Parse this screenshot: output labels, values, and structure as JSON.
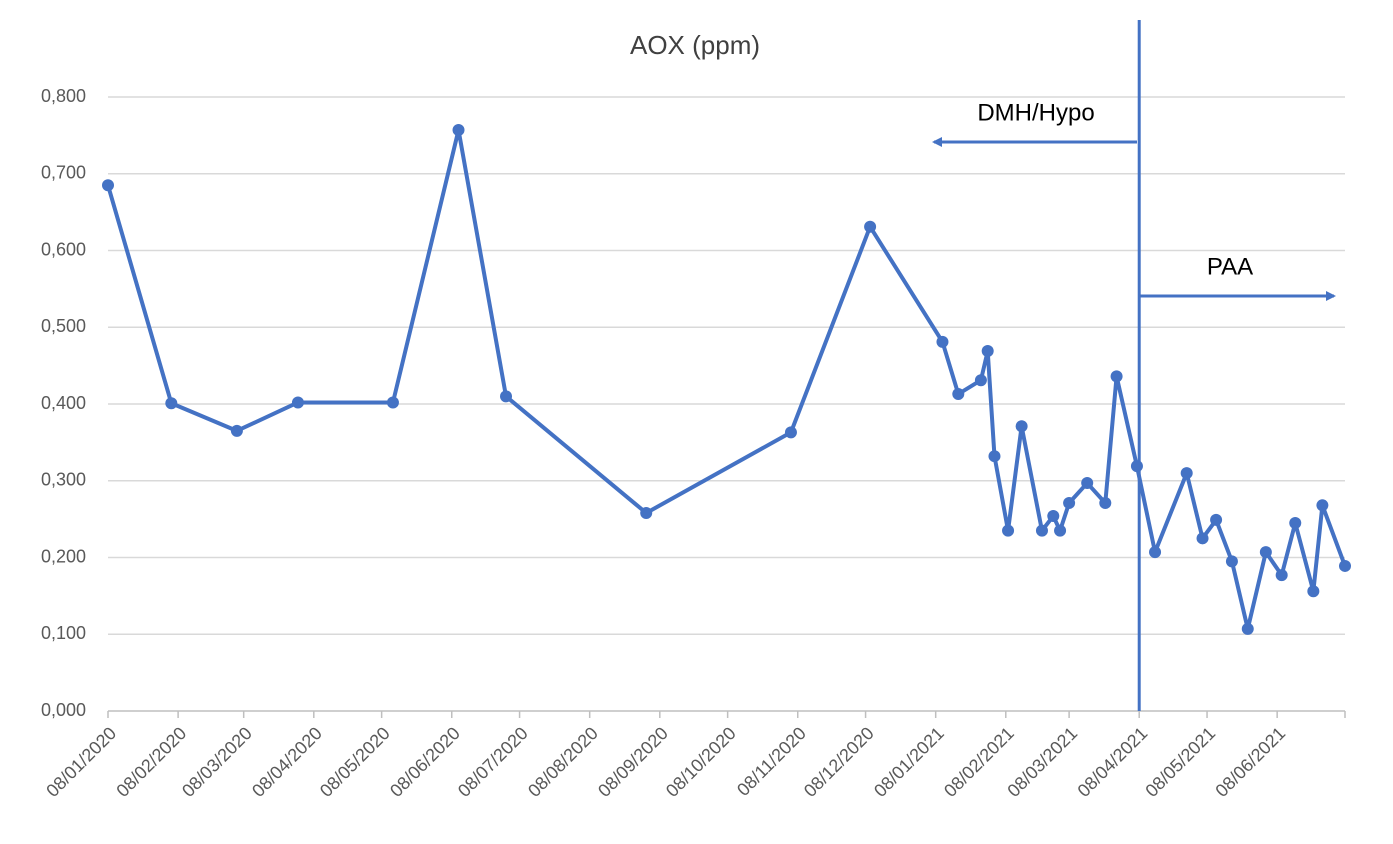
{
  "chart_data": {
    "type": "line",
    "title": "AOX (ppm)",
    "x": [
      "2020-01-08",
      "2020-02-05",
      "2020-03-05",
      "2020-04-01",
      "2020-05-13",
      "2020-06-11",
      "2020-07-02",
      "2020-09-02",
      "2020-11-05",
      "2020-12-10",
      "2021-01-11",
      "2021-01-18",
      "2021-01-28",
      "2021-01-31",
      "2021-02-03",
      "2021-02-09",
      "2021-02-15",
      "2021-02-24",
      "2021-03-01",
      "2021-03-04",
      "2021-03-08",
      "2021-03-16",
      "2021-03-24",
      "2021-03-29",
      "2021-04-07",
      "2021-04-15",
      "2021-04-29",
      "2021-05-06",
      "2021-05-12",
      "2021-05-19",
      "2021-05-26",
      "2021-06-03",
      "2021-06-10",
      "2021-06-16",
      "2021-06-24",
      "2021-06-28",
      "2021-07-08"
    ],
    "series": [
      {
        "name": "AOX (ppm)",
        "color": "#4472c4",
        "values": [
          0.685,
          0.401,
          0.365,
          0.402,
          0.402,
          0.757,
          0.41,
          0.258,
          0.363,
          0.631,
          0.481,
          0.413,
          0.431,
          0.469,
          0.332,
          0.235,
          0.371,
          0.235,
          0.254,
          0.235,
          0.271,
          0.297,
          0.271,
          0.436,
          0.319,
          0.207,
          0.31,
          0.225,
          0.249,
          0.195,
          0.107,
          0.207,
          0.177,
          0.245,
          0.156,
          0.268,
          0.189
        ]
      }
    ],
    "xlim": [
      "2020-01-08",
      "2021-07-08"
    ],
    "xticks": [
      {
        "value": "2020-01-08",
        "label": "08/01/2020"
      },
      {
        "value": "2020-02-08",
        "label": "08/02/2020"
      },
      {
        "value": "2020-03-08",
        "label": "08/03/2020"
      },
      {
        "value": "2020-04-08",
        "label": "08/04/2020"
      },
      {
        "value": "2020-05-08",
        "label": "08/05/2020"
      },
      {
        "value": "2020-06-08",
        "label": "08/06/2020"
      },
      {
        "value": "2020-07-08",
        "label": "08/07/2020"
      },
      {
        "value": "2020-08-08",
        "label": "08/08/2020"
      },
      {
        "value": "2020-09-08",
        "label": "08/09/2020"
      },
      {
        "value": "2020-10-08",
        "label": "08/10/2020"
      },
      {
        "value": "2020-11-08",
        "label": "08/11/2020"
      },
      {
        "value": "2020-12-08",
        "label": "08/12/2020"
      },
      {
        "value": "2021-01-08",
        "label": "08/01/2021"
      },
      {
        "value": "2021-02-08",
        "label": "08/02/2021"
      },
      {
        "value": "2021-03-08",
        "label": "08/03/2021"
      },
      {
        "value": "2021-04-08",
        "label": "08/04/2021"
      },
      {
        "value": "2021-05-08",
        "label": "08/05/2021"
      },
      {
        "value": "2021-06-08",
        "label": "08/06/2021"
      }
    ],
    "ylim": [
      0,
      0.8
    ],
    "yticks": [
      {
        "value": 0,
        "label": "0,000"
      },
      {
        "value": 0.1,
        "label": "0,100"
      },
      {
        "value": 0.2,
        "label": "0,200"
      },
      {
        "value": 0.3,
        "label": "0,300"
      },
      {
        "value": 0.4,
        "label": "0,400"
      },
      {
        "value": 0.5,
        "label": "0,500"
      },
      {
        "value": 0.6,
        "label": "0,600"
      },
      {
        "value": 0.7,
        "label": "0,700"
      },
      {
        "value": 0.8,
        "label": "0,800"
      }
    ],
    "grid": true,
    "divider_x": "2021-04-08",
    "annotations": [
      {
        "text": "DMH/Hypo"
      },
      {
        "text": "PAA"
      }
    ]
  }
}
